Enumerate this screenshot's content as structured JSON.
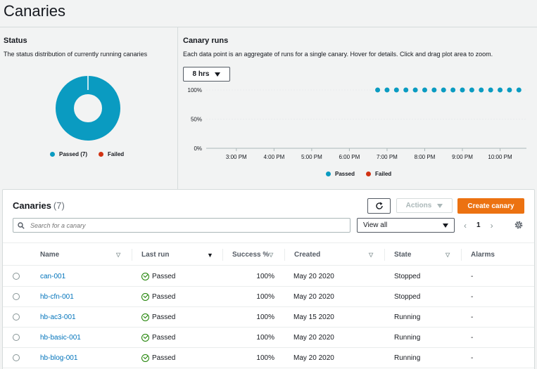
{
  "page": {
    "title": "Canaries"
  },
  "status": {
    "title": "Status",
    "description": "The status distribution of currently running canaries",
    "legend": [
      {
        "label": "Passed (7)",
        "color": "#0a9bc1"
      },
      {
        "label": "Failed",
        "color": "#d13212"
      }
    ],
    "donut": {
      "passed": 7,
      "failed": 0
    }
  },
  "runs": {
    "title": "Canary runs",
    "description": "Each data point is an aggregate of runs for a single canary. Hover for details. Click and drag plot area to zoom.",
    "range_label": "8 hrs",
    "legend": [
      {
        "label": "Passed",
        "color": "#0a9bc1"
      },
      {
        "label": "Failed",
        "color": "#d13212"
      }
    ]
  },
  "chart_data": {
    "type": "scatter",
    "categories": [
      "3:00 PM",
      "4:00 PM",
      "5:00 PM",
      "6:00 PM",
      "7:00 PM",
      "8:00 PM",
      "9:00 PM",
      "10:00 PM"
    ],
    "y_ticks": [
      "100%",
      "50%",
      "0%"
    ],
    "ylim": [
      0,
      100
    ],
    "series": [
      {
        "name": "Passed",
        "color": "#0a9bc1",
        "x_hours": [
          18.75,
          19.0,
          19.25,
          19.5,
          19.75,
          20.0,
          20.25,
          20.5,
          20.75,
          21.0,
          21.25,
          21.5,
          21.75,
          22.0,
          22.25,
          22.5
        ],
        "values": [
          100,
          100,
          100,
          100,
          100,
          100,
          100,
          100,
          100,
          100,
          100,
          100,
          100,
          100,
          100,
          100
        ]
      },
      {
        "name": "Failed",
        "color": "#d13212",
        "x_hours": [],
        "values": []
      }
    ],
    "x_range_hours": [
      14.2,
      22.7
    ]
  },
  "table": {
    "title": "Canaries",
    "count": "(7)",
    "actions_label": "Actions",
    "create_label": "Create canary",
    "search_placeholder": "Search for a canary",
    "view_label": "View all",
    "page": "1",
    "columns": [
      "Name",
      "Last run",
      "Success %",
      "Created",
      "State",
      "Alarms"
    ],
    "rows": [
      {
        "name": "can-001",
        "last_run": "Passed",
        "success": "100%",
        "created": "May 20 2020",
        "state": "Stopped",
        "alarms": "-"
      },
      {
        "name": "hb-cfn-001",
        "last_run": "Passed",
        "success": "100%",
        "created": "May 20 2020",
        "state": "Stopped",
        "alarms": "-"
      },
      {
        "name": "hb-ac3-001",
        "last_run": "Passed",
        "success": "100%",
        "created": "May 15 2020",
        "state": "Running",
        "alarms": "-"
      },
      {
        "name": "hb-basic-001",
        "last_run": "Passed",
        "success": "100%",
        "created": "May 20 2020",
        "state": "Running",
        "alarms": "-"
      },
      {
        "name": "hb-blog-001",
        "last_run": "Passed",
        "success": "100%",
        "created": "May 20 2020",
        "state": "Running",
        "alarms": "-"
      }
    ]
  }
}
